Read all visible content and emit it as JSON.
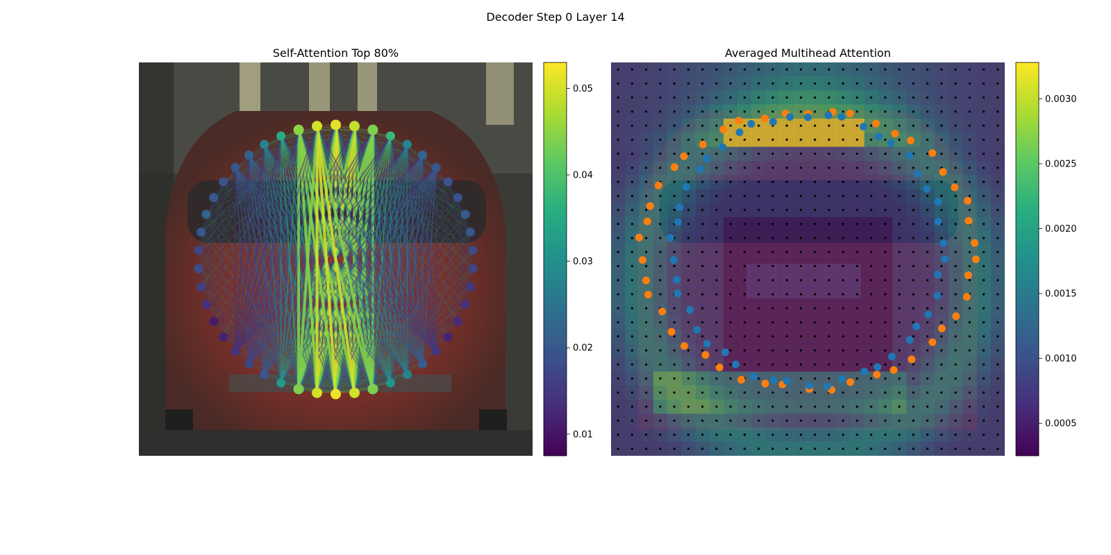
{
  "figure": {
    "suptitle": "Decoder Step 0 Layer 14"
  },
  "chart_data": [
    {
      "type": "network",
      "title": "Self-Attention Top 80%",
      "background": "photo of a red car (rear view) on a street, darkened",
      "colormap": "viridis",
      "colorbar": {
        "range": [
          0.0075,
          0.053
        ],
        "ticks": [
          0.01,
          0.02,
          0.03,
          0.04,
          0.05
        ],
        "tick_labels": [
          "0.01",
          "0.02",
          "0.03",
          "0.04",
          "0.05"
        ]
      },
      "num_nodes": 46,
      "node_values": [
        0.051,
        0.049,
        0.044,
        0.038,
        0.028,
        0.022,
        0.02,
        0.019,
        0.019,
        0.021,
        0.02,
        0.018,
        0.017,
        0.015,
        0.014,
        0.013,
        0.012,
        0.015,
        0.021,
        0.028,
        0.031,
        0.044,
        0.05,
        0.052,
        0.05,
        0.044,
        0.032,
        0.02,
        0.017,
        0.014,
        0.012,
        0.011,
        0.014,
        0.016,
        0.018,
        0.017,
        0.02,
        0.022,
        0.02,
        0.019,
        0.02,
        0.022,
        0.028,
        0.036,
        0.045,
        0.05
      ],
      "edges_note": "edges concentrated between the top arc and the bottom arc nodes, bright yellow weights up to ~0.052"
    },
    {
      "type": "heatmap",
      "title": "Averaged Multihead Attention",
      "background": "same car photo overlaid with a 28x28 attention grid",
      "colormap": "viridis",
      "grid_size": [
        28,
        28
      ],
      "colorbar": {
        "range": [
          0.00025,
          0.00328
        ],
        "ticks": [
          0.0005,
          0.001,
          0.0015,
          0.002,
          0.0025,
          0.003
        ],
        "tick_labels": [
          "0.0005",
          "0.0010",
          "0.0015",
          "0.0020",
          "0.0025",
          "0.0030"
        ]
      },
      "series": [
        {
          "name": "",
          "color": "#ff7f0e",
          "count": 46
        },
        {
          "name": "",
          "color": "#1f77b4",
          "count": 46
        }
      ]
    }
  ],
  "colors": {
    "orange_points": "#ff7f0e",
    "blue_points": "#1f77b4",
    "grid_dots": "#000000"
  }
}
